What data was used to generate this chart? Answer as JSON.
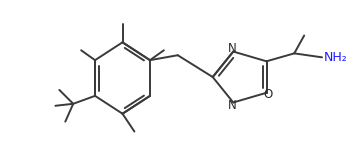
{
  "bg_color": "#ffffff",
  "line_color": "#3a3a3a",
  "lw": 1.4,
  "fig_width": 3.6,
  "fig_height": 1.6,
  "dpi": 100,
  "xlim": [
    0,
    360
  ],
  "ylim": [
    0,
    160
  ]
}
